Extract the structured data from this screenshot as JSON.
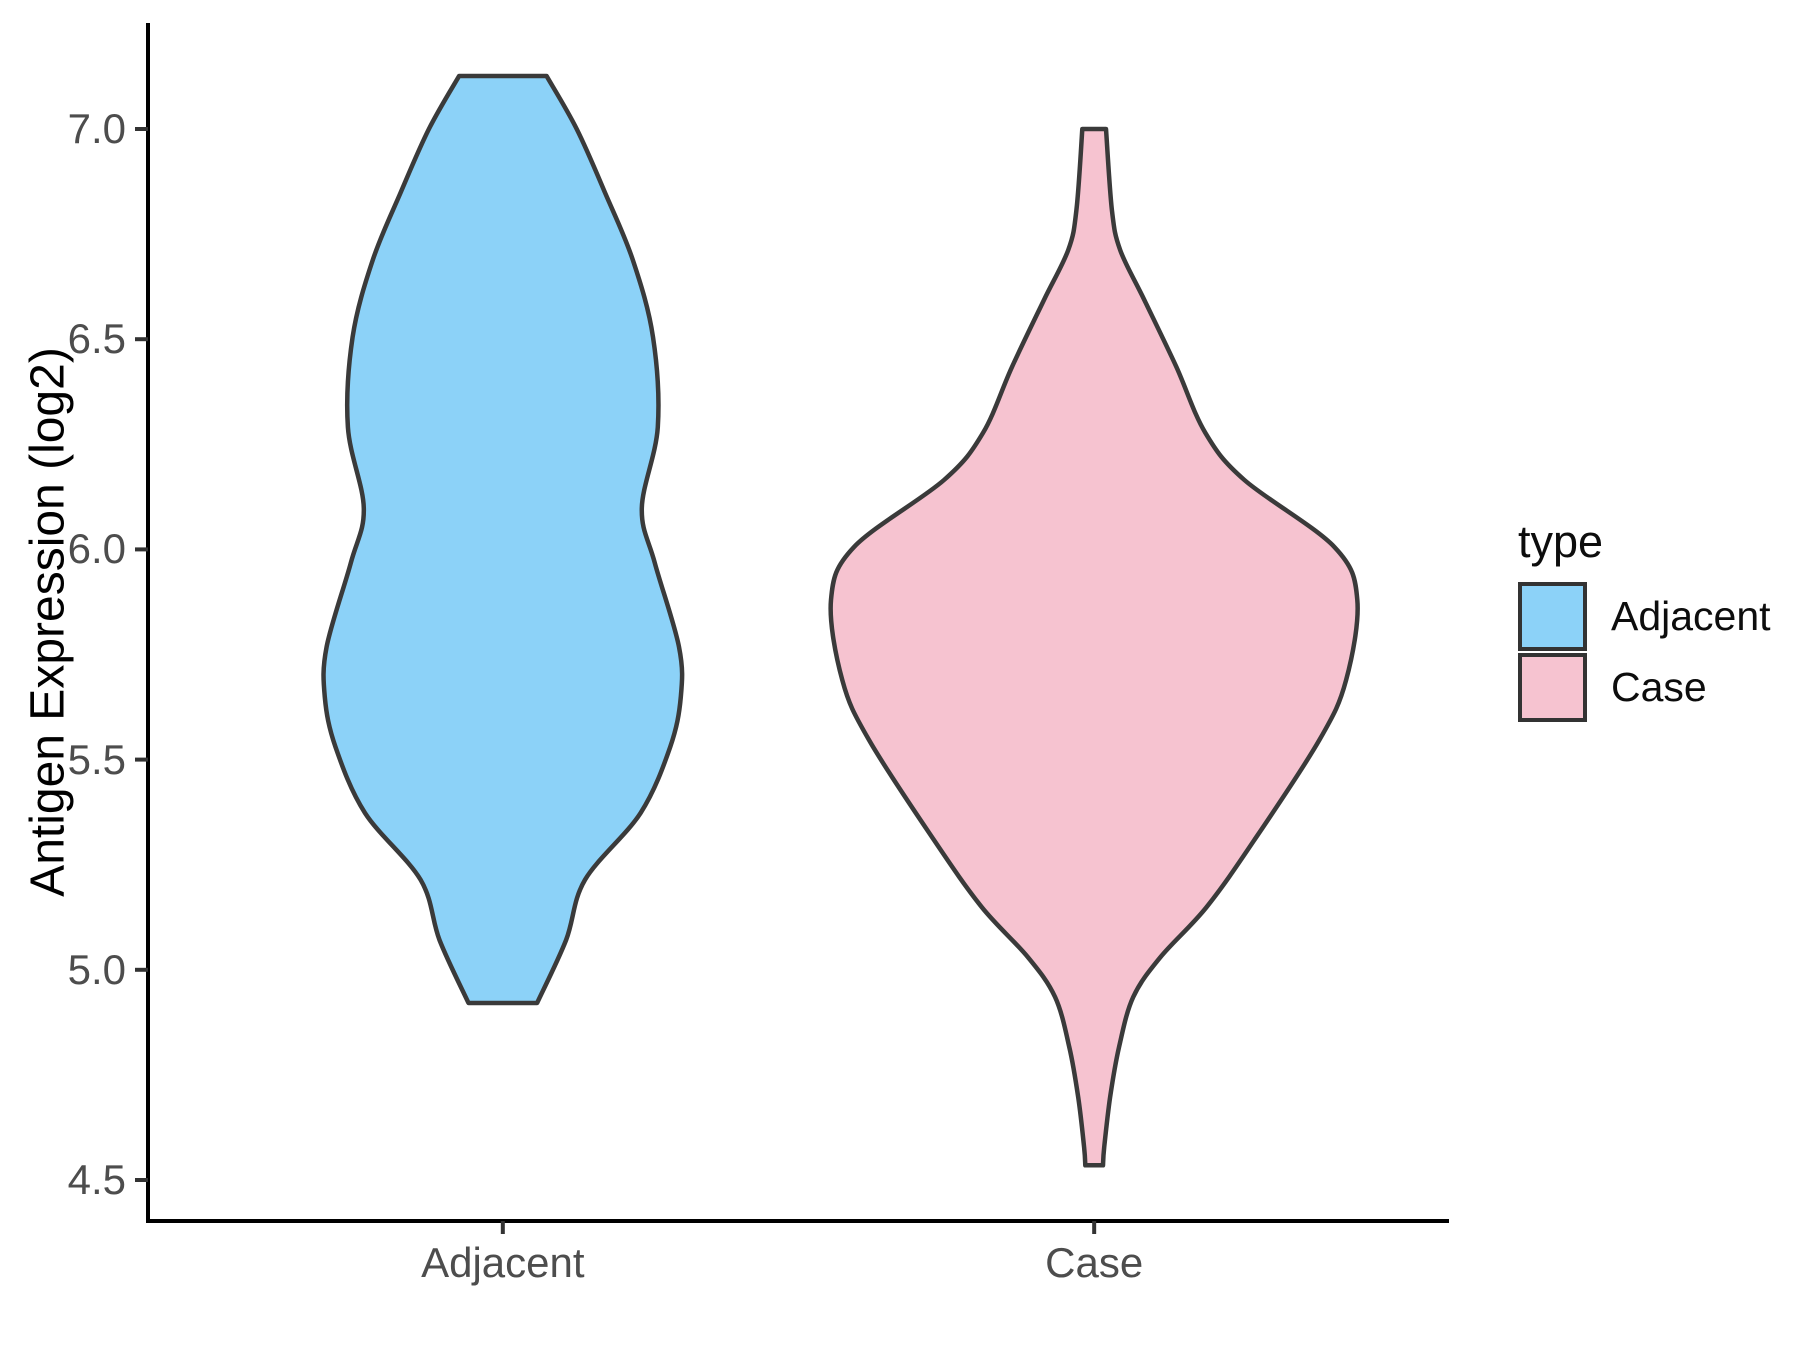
{
  "chart_data": {
    "type": "violin",
    "title": "",
    "xlabel": "",
    "ylabel": "Antigen Expression (log2)",
    "categories": [
      "Adjacent",
      "Case"
    ],
    "y_ticks": [
      "7.0",
      "6.5",
      "6.0",
      "5.5",
      "5.0",
      "4.5"
    ],
    "y_tick_values": [
      7.0,
      6.5,
      6.0,
      5.5,
      5.0,
      4.5
    ],
    "ylim": [
      4.4,
      7.25
    ],
    "grid": "off",
    "colors": {
      "adjacent_fill": "#8CD2F8",
      "case_fill": "#F6C3D0",
      "outline": "#3A3A3A",
      "axis_line": "#000000",
      "axis_text": "#4d4d4d"
    },
    "legend": {
      "title": "type",
      "position": "right",
      "entries": [
        {
          "label": "Adjacent",
          "color": "#8CD2F8"
        },
        {
          "label": "Case",
          "color": "#F6C3D0"
        }
      ]
    },
    "series": [
      {
        "name": "Adjacent",
        "color": "#8CD2F8",
        "center": 1,
        "profile": [
          {
            "v": 7.126,
            "w": 0.074
          },
          {
            "v": 7.0,
            "w": 0.125
          },
          {
            "v": 6.848,
            "w": 0.173
          },
          {
            "v": 6.688,
            "w": 0.22
          },
          {
            "v": 6.505,
            "w": 0.254
          },
          {
            "v": 6.291,
            "w": 0.262
          },
          {
            "v": 6.098,
            "w": 0.235
          },
          {
            "v": 5.968,
            "w": 0.257
          },
          {
            "v": 5.768,
            "w": 0.298
          },
          {
            "v": 5.649,
            "w": 0.301
          },
          {
            "v": 5.53,
            "w": 0.283
          },
          {
            "v": 5.373,
            "w": 0.233
          },
          {
            "v": 5.214,
            "w": 0.139
          },
          {
            "v": 5.071,
            "w": 0.107
          },
          {
            "v": 4.921,
            "w": 0.058
          }
        ]
      },
      {
        "name": "Case",
        "color": "#F6C3D0",
        "center": 2,
        "profile": [
          {
            "v": 7.0,
            "w": 0.02
          },
          {
            "v": 6.807,
            "w": 0.03
          },
          {
            "v": 6.712,
            "w": 0.044
          },
          {
            "v": 6.593,
            "w": 0.085
          },
          {
            "v": 6.434,
            "w": 0.139
          },
          {
            "v": 6.277,
            "w": 0.188
          },
          {
            "v": 6.165,
            "w": 0.254
          },
          {
            "v": 6.006,
            "w": 0.406
          },
          {
            "v": 5.88,
            "w": 0.445
          },
          {
            "v": 5.689,
            "w": 0.426
          },
          {
            "v": 5.547,
            "w": 0.381
          },
          {
            "v": 5.309,
            "w": 0.271
          },
          {
            "v": 5.149,
            "w": 0.19
          },
          {
            "v": 5.03,
            "w": 0.112
          },
          {
            "v": 4.935,
            "w": 0.066
          },
          {
            "v": 4.816,
            "w": 0.042
          },
          {
            "v": 4.697,
            "w": 0.027
          },
          {
            "v": 4.578,
            "w": 0.017
          },
          {
            "v": 4.535,
            "w": 0.015
          }
        ]
      }
    ]
  }
}
